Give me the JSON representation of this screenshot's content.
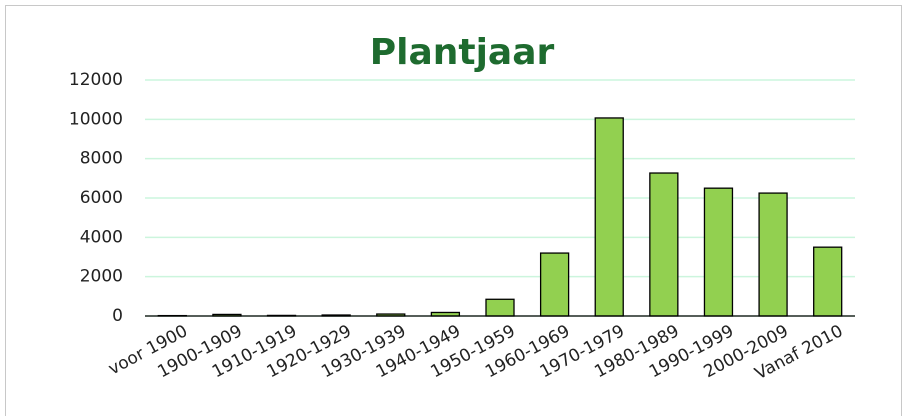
{
  "chart_data": {
    "type": "bar",
    "title": "Plantjaar",
    "categories": [
      "voor 1900",
      "1900-1909",
      "1910-1919",
      "1920-1929",
      "1930-1939",
      "1940-1949",
      "1950-1959",
      "1960-1969",
      "1970-1979",
      "1980-1989",
      "1990-1999",
      "2000-2009",
      "Vanaf 2010"
    ],
    "values": [
      20,
      80,
      30,
      50,
      100,
      180,
      850,
      3200,
      10070,
      7270,
      6500,
      6250,
      3500
    ],
    "color": "#92d050",
    "ylim": [
      0,
      12000
    ],
    "yticks": [
      0,
      2000,
      4000,
      6000,
      8000,
      10000,
      12000
    ],
    "grid": true
  }
}
